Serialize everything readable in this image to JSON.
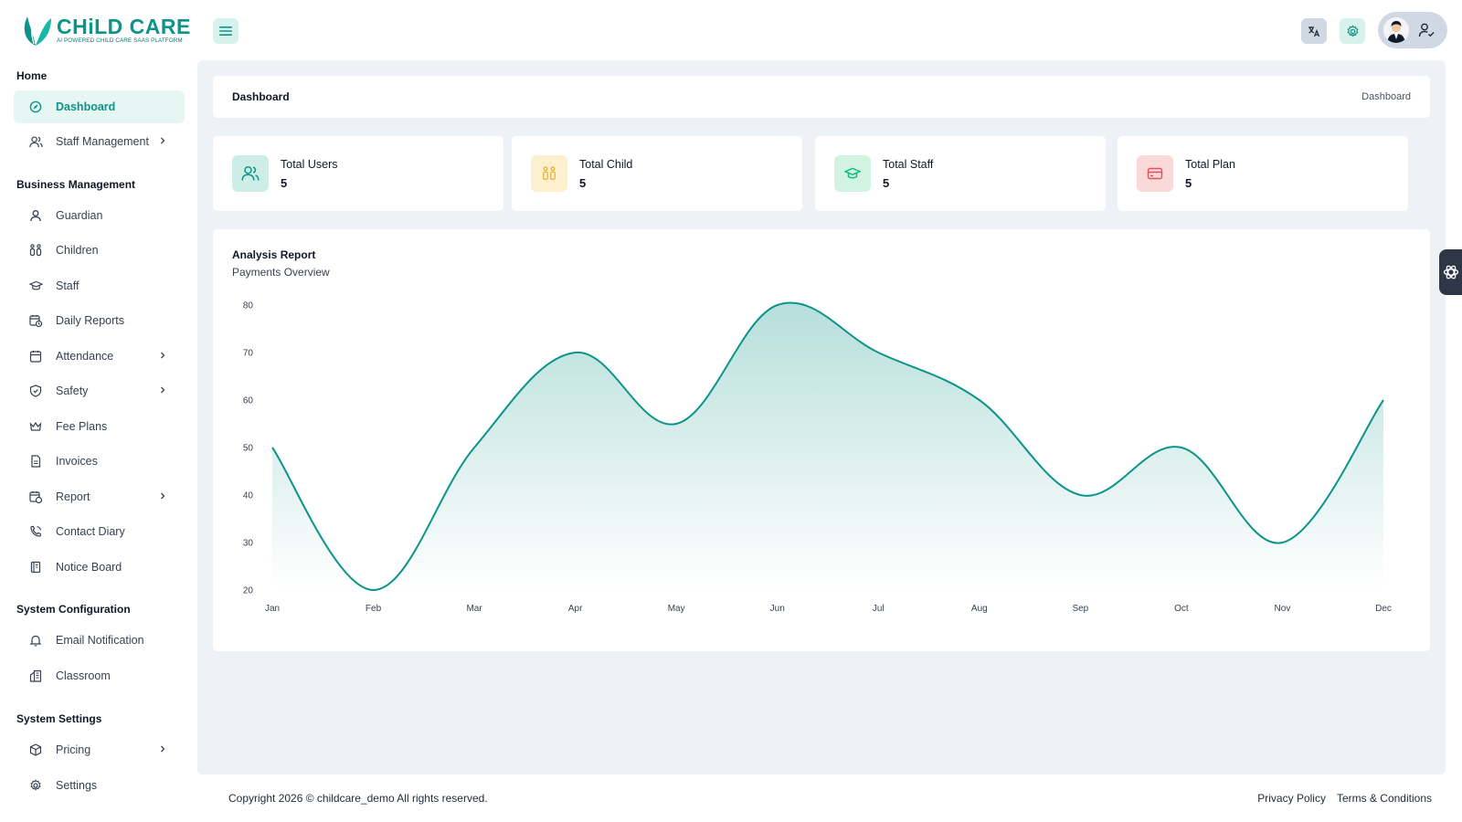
{
  "brand": {
    "name": "CHiLD CARE",
    "tagline": "AI POWERED CHILD CARE SAAS PLATFORM",
    "accent": "#0d9488"
  },
  "header": {
    "menu_icon": "hamburger-icon",
    "translate_icon": "translate-icon",
    "settings_icon": "gear-icon",
    "profile_icon": "user-check-icon"
  },
  "sidebar": {
    "sections": [
      {
        "title": "Home",
        "items": [
          {
            "label": "Dashboard",
            "icon": "dashboard-icon",
            "active": true,
            "has_children": false
          },
          {
            "label": "Staff Management",
            "icon": "users-icon",
            "active": false,
            "has_children": true
          }
        ]
      },
      {
        "title": "Business Management",
        "items": [
          {
            "label": "Guardian",
            "icon": "user-icon",
            "has_children": false
          },
          {
            "label": "Children",
            "icon": "children-icon",
            "has_children": false
          },
          {
            "label": "Staff",
            "icon": "graduation-cap-icon",
            "has_children": false
          },
          {
            "label": "Daily Reports",
            "icon": "calendar-clock-icon",
            "has_children": false
          },
          {
            "label": "Attendance",
            "icon": "calendar-icon",
            "has_children": true
          },
          {
            "label": "Safety",
            "icon": "shield-icon",
            "has_children": true
          },
          {
            "label": "Fee Plans",
            "icon": "crown-icon",
            "has_children": false
          },
          {
            "label": "Invoices",
            "icon": "file-icon",
            "has_children": false
          },
          {
            "label": "Report",
            "icon": "report-icon",
            "has_children": true
          },
          {
            "label": "Contact Diary",
            "icon": "phone-icon",
            "has_children": false
          },
          {
            "label": "Notice Board",
            "icon": "book-icon",
            "has_children": false
          }
        ]
      },
      {
        "title": "System Configuration",
        "items": [
          {
            "label": "Email Notification",
            "icon": "bell-icon",
            "has_children": false
          },
          {
            "label": "Classroom",
            "icon": "classroom-icon",
            "has_children": false
          }
        ]
      },
      {
        "title": "System Settings",
        "items": [
          {
            "label": "Pricing",
            "icon": "package-icon",
            "has_children": true
          },
          {
            "label": "Settings",
            "icon": "gear-icon",
            "has_children": false
          }
        ]
      }
    ]
  },
  "page": {
    "title": "Dashboard",
    "breadcrumb": "Dashboard"
  },
  "stats": [
    {
      "label": "Total Users",
      "value": "5",
      "icon": "users-icon",
      "bg": "#cdeee7",
      "fg": "#0d9488"
    },
    {
      "label": "Total Child",
      "value": "5",
      "icon": "children-icon",
      "bg": "#fdf0cf",
      "fg": "#e8b53a"
    },
    {
      "label": "Total Staff",
      "value": "5",
      "icon": "graduation-cap-icon",
      "bg": "#d3f3e2",
      "fg": "#10b981"
    },
    {
      "label": "Total Plan",
      "value": "5",
      "icon": "credit-card-icon",
      "bg": "#fcd9d9",
      "fg": "#e0505a"
    }
  ],
  "chart": {
    "title": "Analysis Report",
    "subtitle": "Payments Overview"
  },
  "chart_data": {
    "type": "area",
    "categories": [
      "Jan",
      "Feb",
      "Mar",
      "Apr",
      "May",
      "Jun",
      "Jul",
      "Aug",
      "Sep",
      "Oct",
      "Nov",
      "Dec"
    ],
    "series": [
      {
        "values": [
          50,
          20,
          50,
          70,
          55,
          80,
          70,
          60,
          40,
          50,
          30,
          60
        ]
      }
    ],
    "ylim": [
      20,
      80
    ],
    "yticks": [
      80,
      70,
      60,
      50,
      40,
      30,
      20
    ],
    "color": "#0d9488",
    "grid": false,
    "title": "Analysis Report",
    "subtitle": "Payments Overview"
  },
  "footer": {
    "copyright": "Copyright 2026 © childcare_demo All rights reserved.",
    "links": [
      "Privacy Policy",
      "Terms & Conditions"
    ]
  }
}
